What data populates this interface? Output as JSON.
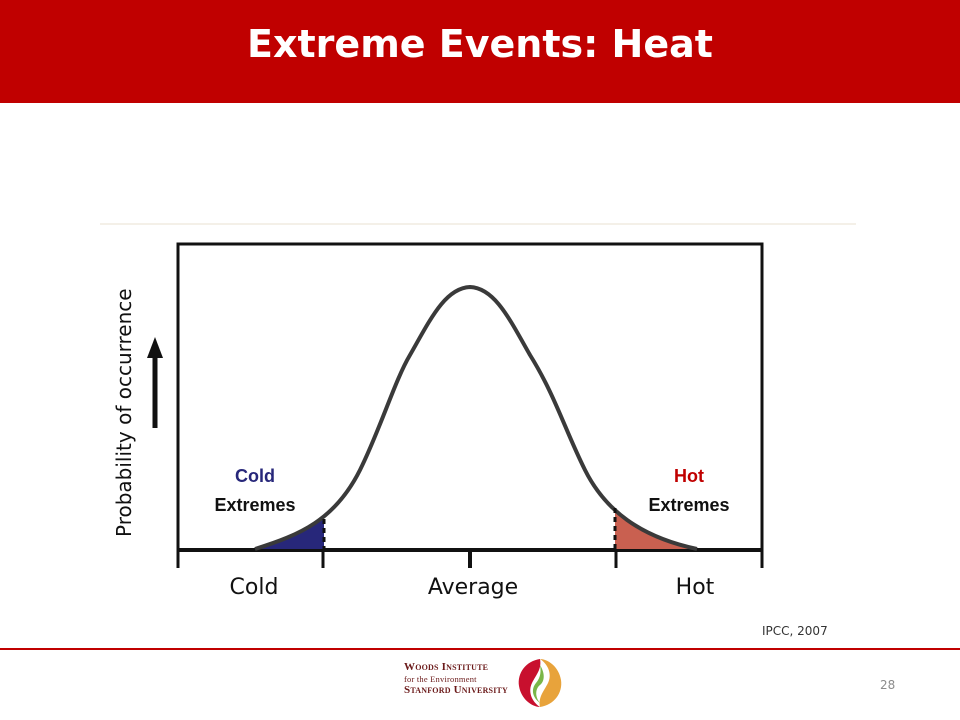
{
  "slide": {
    "title": "Extreme Events: Heat",
    "source": "IPCC, 2007",
    "page_number": "28"
  },
  "diagram": {
    "y_axis_label": "Probability of occurrence",
    "x_categories": [
      "Cold",
      "Average",
      "Hot"
    ],
    "cold_tail_label": {
      "line1": "Cold",
      "line2": "Extremes"
    },
    "hot_tail_label": {
      "line1": "Hot",
      "line2": "Extremes"
    }
  },
  "logo": {
    "line1": "Woods Institute",
    "line2": "for the Environment",
    "line3": "Stanford University"
  },
  "colors": {
    "header": "#c00000",
    "cold_fill": "#27277a",
    "hot_fill": "#c96050",
    "curve": "#3a3a3a"
  }
}
